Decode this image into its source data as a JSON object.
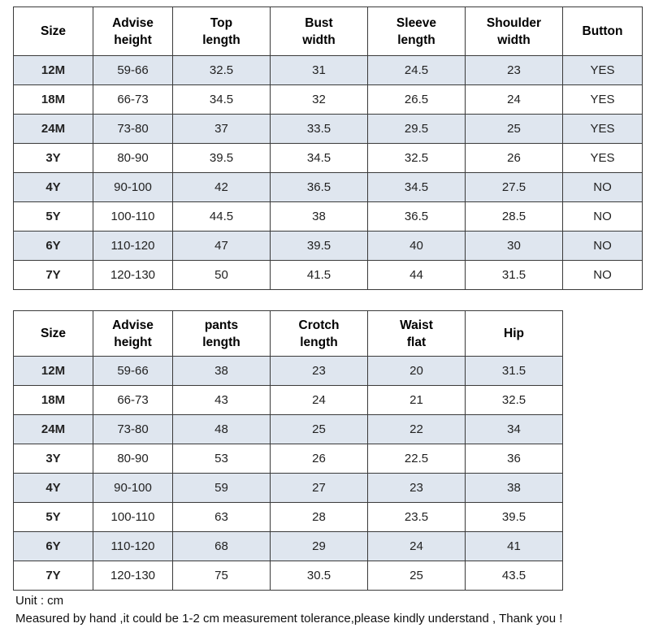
{
  "top_table": {
    "headers": [
      [
        "Size"
      ],
      [
        "Advise",
        "height"
      ],
      [
        "Top",
        "length"
      ],
      [
        "Bust",
        "width"
      ],
      [
        "Sleeve",
        "length"
      ],
      [
        "Shoulder",
        "width"
      ],
      [
        "Button"
      ]
    ],
    "rows": [
      [
        "12M",
        "59-66",
        "32.5",
        "31",
        "24.5",
        "23",
        "YES"
      ],
      [
        "18M",
        "66-73",
        "34.5",
        "32",
        "26.5",
        "24",
        "YES"
      ],
      [
        "24M",
        "73-80",
        "37",
        "33.5",
        "29.5",
        "25",
        "YES"
      ],
      [
        "3Y",
        "80-90",
        "39.5",
        "34.5",
        "32.5",
        "26",
        "YES"
      ],
      [
        "4Y",
        "90-100",
        "42",
        "36.5",
        "34.5",
        "27.5",
        "NO"
      ],
      [
        "5Y",
        "100-110",
        "44.5",
        "38",
        "36.5",
        "28.5",
        "NO"
      ],
      [
        "6Y",
        "110-120",
        "47",
        "39.5",
        "40",
        "30",
        "NO"
      ],
      [
        "7Y",
        "120-130",
        "50",
        "41.5",
        "44",
        "31.5",
        "NO"
      ]
    ]
  },
  "bottom_table": {
    "headers": [
      [
        "Size"
      ],
      [
        "Advise",
        "height"
      ],
      [
        "pants",
        "length"
      ],
      [
        "Crotch",
        "length"
      ],
      [
        "Waist",
        "flat"
      ],
      [
        "Hip"
      ]
    ],
    "rows": [
      [
        "12M",
        "59-66",
        "38",
        "23",
        "20",
        "31.5"
      ],
      [
        "18M",
        "66-73",
        "43",
        "24",
        "21",
        "32.5"
      ],
      [
        "24M",
        "73-80",
        "48",
        "25",
        "22",
        "34"
      ],
      [
        "3Y",
        "80-90",
        "53",
        "26",
        "22.5",
        "36"
      ],
      [
        "4Y",
        "90-100",
        "59",
        "27",
        "23",
        "38"
      ],
      [
        "5Y",
        "100-110",
        "63",
        "28",
        "23.5",
        "39.5"
      ],
      [
        "6Y",
        "110-120",
        "68",
        "29",
        "24",
        "41"
      ],
      [
        "7Y",
        "120-130",
        "75",
        "30.5",
        "25",
        "43.5"
      ]
    ]
  },
  "notes": {
    "unit": "Unit : cm",
    "tolerance": "Measured by hand ,it could be 1-2 cm measurement tolerance,please kindly understand , Thank you !"
  },
  "colors": {
    "shaded_row": "#dfe6ef",
    "border": "#3a3a3a"
  }
}
